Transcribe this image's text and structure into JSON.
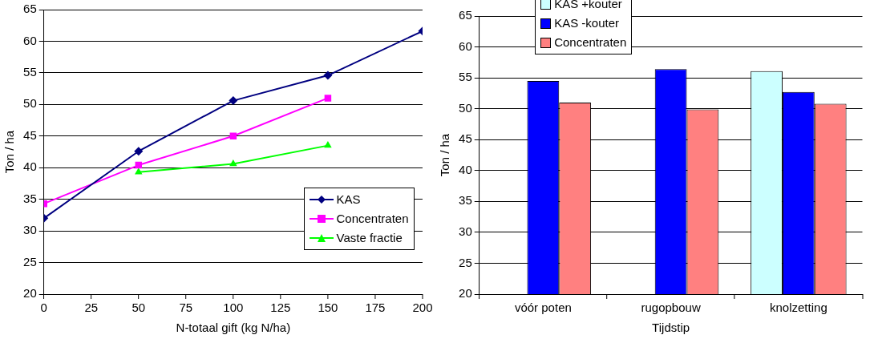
{
  "chart_data": [
    {
      "type": "line",
      "xlabel": "N-totaal gift (kg N/ha)",
      "ylabel": "Ton / ha",
      "xlim": [
        0,
        200
      ],
      "xticks": [
        0,
        25,
        50,
        75,
        100,
        125,
        150,
        175,
        200
      ],
      "ylim": [
        20,
        65
      ],
      "yticks": [
        20,
        25,
        30,
        35,
        40,
        45,
        50,
        55,
        60,
        65
      ],
      "grid": "y",
      "legend": "bottom right",
      "line_style": "solid",
      "series": [
        {
          "name": "KAS",
          "color": "#000080",
          "marker": "diamond",
          "x": [
            0,
            50,
            100,
            150,
            200
          ],
          "values": [
            32,
            42.6,
            50.6,
            54.6,
            61.6
          ]
        },
        {
          "name": "Concentraten",
          "color": "#ff00ff",
          "marker": "square",
          "x": [
            0,
            50,
            100,
            150
          ],
          "values": [
            34.3,
            40.4,
            45,
            51
          ]
        },
        {
          "name": "Vaste fractie",
          "color": "#00ff00",
          "marker": "triangle",
          "x": [
            50,
            100,
            150
          ],
          "values": [
            39.3,
            40.6,
            43.5
          ]
        }
      ]
    },
    {
      "type": "bar",
      "xlabel": "Tijdstip",
      "ylabel": "Ton / ha",
      "categories": [
        "vóór poten",
        "rugopbouw",
        "knolzetting"
      ],
      "ylim": [
        20,
        65
      ],
      "yticks": [
        20,
        25,
        30,
        35,
        40,
        45,
        50,
        55,
        60,
        65
      ],
      "grid": "y",
      "legend": "top left",
      "series": [
        {
          "name": "KAS +kouter",
          "color": "#ccffff",
          "values": [
            null,
            null,
            56.1
          ]
        },
        {
          "name": "KAS -kouter",
          "color": "#0000ff",
          "values": [
            54.5,
            56.4,
            52.7
          ]
        },
        {
          "name": "Concentraten",
          "color": "#ff8080",
          "values": [
            51,
            49.9,
            50.8
          ]
        }
      ]
    }
  ]
}
